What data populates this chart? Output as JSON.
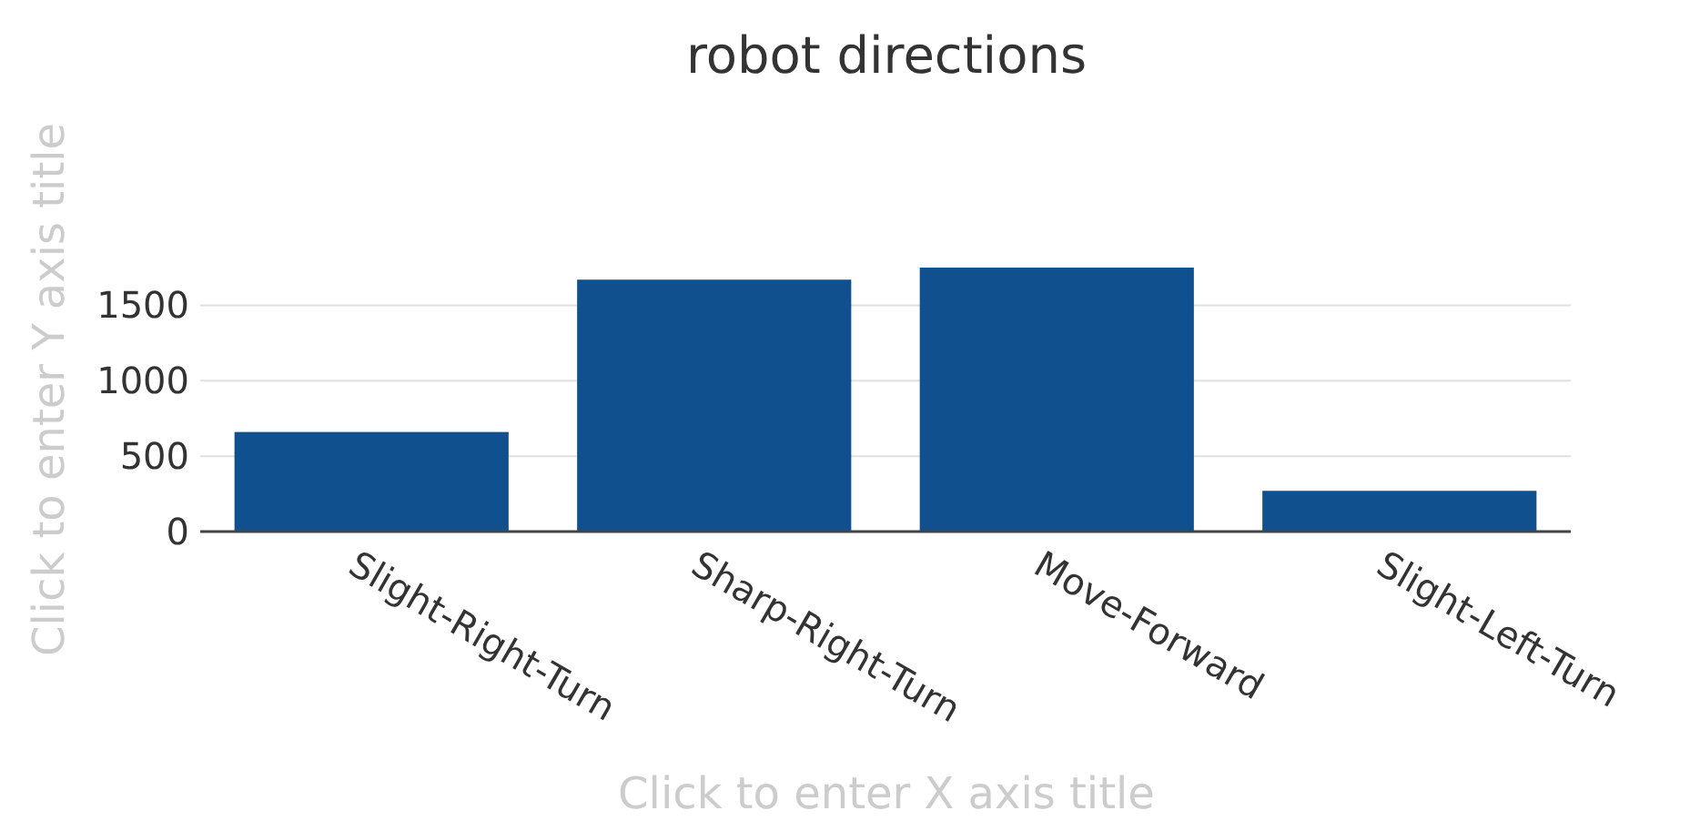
{
  "chart_data": {
    "type": "bar",
    "title": "robot directions",
    "xlabel": "Click to enter X axis title",
    "ylabel": "Click to enter Y axis title",
    "categories": [
      "Slight-Right-Turn",
      "Sharp-Right-Turn",
      "Move-Forward",
      "Slight-Left-Turn"
    ],
    "values": [
      660,
      1670,
      1750,
      270
    ],
    "color": "#10508f",
    "ylim": [
      0,
      1750
    ],
    "yticks": [
      0,
      500,
      1000,
      1500
    ],
    "grid": "y"
  }
}
